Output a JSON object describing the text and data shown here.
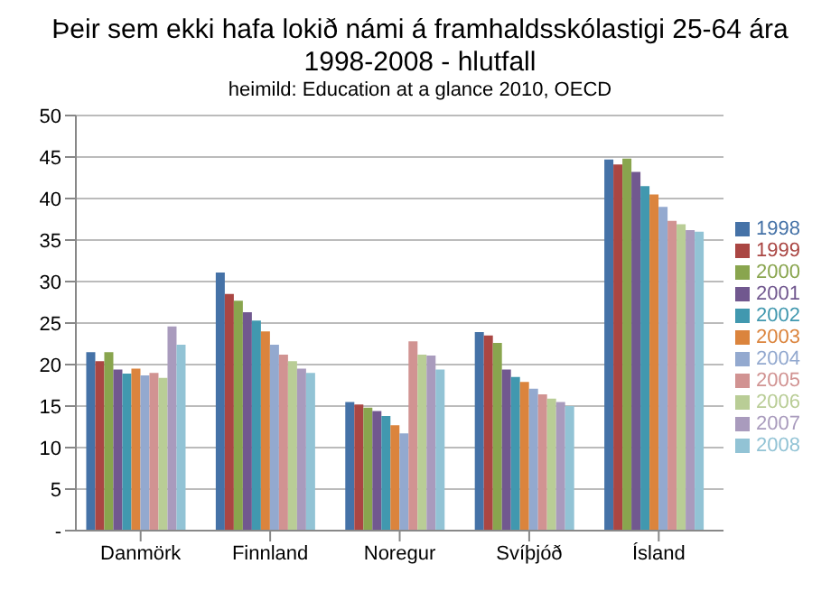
{
  "chart_data": {
    "type": "bar",
    "title": "Þeir sem ekki hafa lokið námi á framhaldsskólastigi 25-64 ára 1998-2008  - hlutfall",
    "annotations": [
      "heimild: Education at a glance 2010, OECD"
    ],
    "categories": [
      "Danmörk",
      "Finnland",
      "Noregur",
      "Svíþjóð",
      "Ísland"
    ],
    "series": [
      {
        "name": "1998",
        "color": "#4572a7",
        "values": [
          21.5,
          31.1,
          15.5,
          23.9,
          44.7
        ]
      },
      {
        "name": "1999",
        "color": "#aa4643",
        "values": [
          20.4,
          28.5,
          15.2,
          23.5,
          44.1
        ]
      },
      {
        "name": "2000",
        "color": "#89a54e",
        "values": [
          21.5,
          27.7,
          14.8,
          22.6,
          44.8
        ]
      },
      {
        "name": "2001",
        "color": "#71588f",
        "values": [
          19.4,
          26.3,
          14.4,
          19.4,
          43.2
        ]
      },
      {
        "name": "2002",
        "color": "#4198af",
        "values": [
          18.9,
          25.3,
          13.8,
          18.5,
          41.5
        ]
      },
      {
        "name": "2003",
        "color": "#db843d",
        "values": [
          19.5,
          24.0,
          12.7,
          17.9,
          40.5
        ]
      },
      {
        "name": "2004",
        "color": "#93a9cf",
        "values": [
          18.7,
          22.4,
          11.7,
          17.1,
          39.0
        ]
      },
      {
        "name": "2005",
        "color": "#d19392",
        "values": [
          19.0,
          21.2,
          22.8,
          16.4,
          37.3
        ]
      },
      {
        "name": "2006",
        "color": "#b9cd96",
        "values": [
          18.4,
          20.4,
          21.2,
          15.9,
          36.9
        ]
      },
      {
        "name": "2007",
        "color": "#a99bbd",
        "values": [
          24.6,
          19.5,
          21.1,
          15.5,
          36.2
        ]
      },
      {
        "name": "2008",
        "color": "#92c3d5",
        "values": [
          22.4,
          19.0,
          19.4,
          15.0,
          36.0
        ]
      }
    ],
    "ylim": [
      0,
      50
    ],
    "yticks": [
      {
        "value": 0,
        "label": "-"
      },
      5,
      10,
      15,
      20,
      25,
      30,
      35,
      40,
      45,
      50
    ],
    "grid": "y",
    "legend": "right"
  }
}
